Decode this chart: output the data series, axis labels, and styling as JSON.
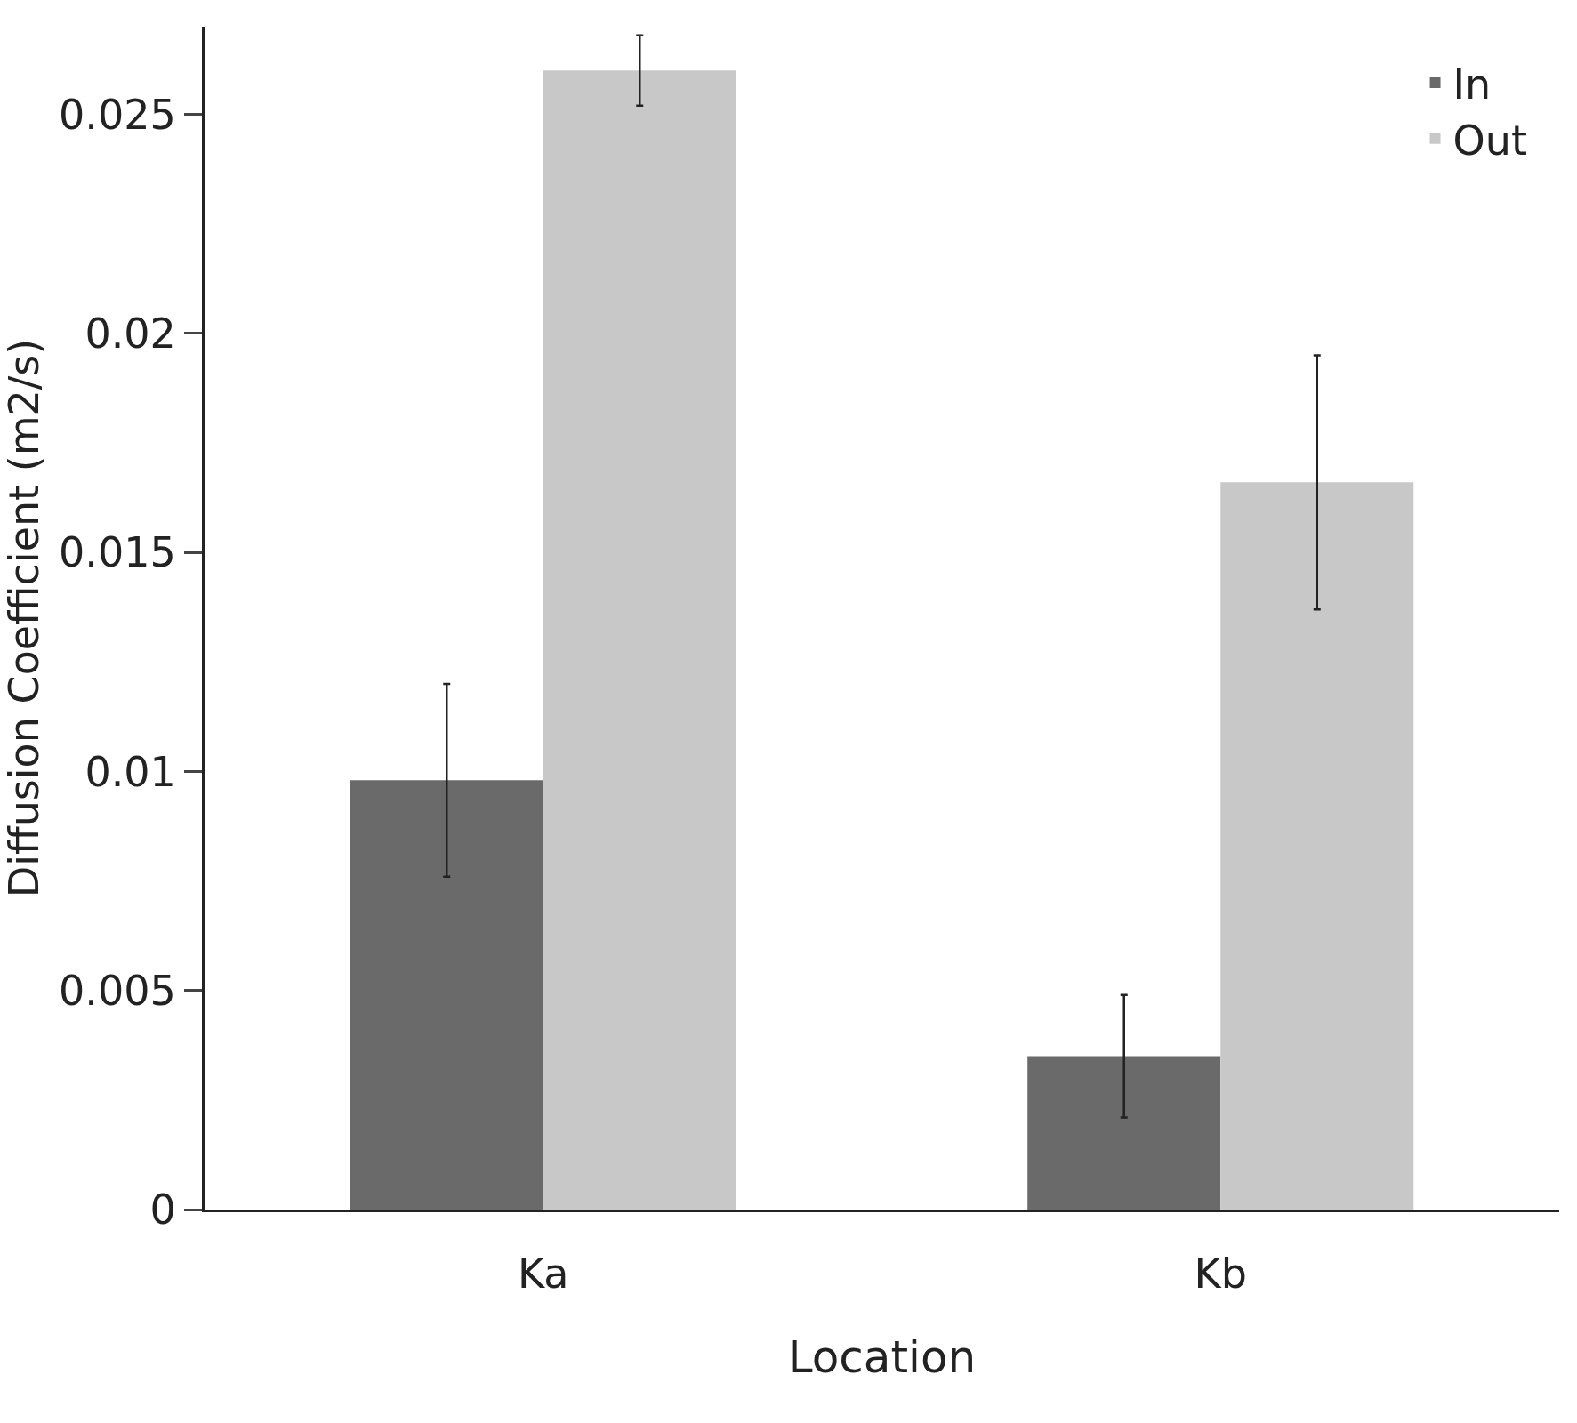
{
  "chart_data": {
    "type": "bar",
    "xlabel": "Location",
    "ylabel": "Diffusion Coefficient (m2/s)",
    "categories": [
      "Ka",
      "Kb"
    ],
    "series": [
      {
        "name": "In",
        "color": "#6a6a6a",
        "values": [
          0.0098,
          0.0035
        ],
        "errors": [
          0.0022,
          0.0014
        ]
      },
      {
        "name": "Out",
        "color": "#c8c8c8",
        "values": [
          0.026,
          0.0166
        ],
        "errors": [
          0.0008,
          0.0029
        ]
      }
    ],
    "ylim": [
      0,
      0.027
    ],
    "yticks": [
      0,
      0.005,
      {
        "value": 0.01,
        "label": "0.01"
      },
      0.015,
      {
        "value": 0.02,
        "label": "0.02"
      },
      0.025
    ],
    "legend": "top right"
  }
}
